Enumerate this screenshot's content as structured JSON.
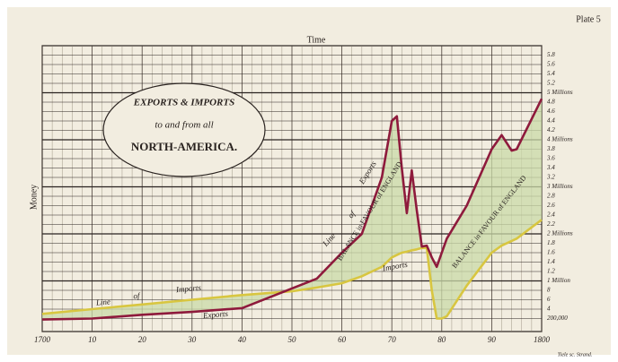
{
  "plate": "Plate 5",
  "credit": "Tiele sc. Strand.",
  "chart_data": {
    "type": "line",
    "title": [
      "EXPORTS & IMPORTS",
      "to and from all",
      "NORTH-AMERICA."
    ],
    "x_label": "Time",
    "y_label": "Money",
    "x": [
      1700,
      1710,
      1720,
      1730,
      1740,
      1750,
      1755,
      1760,
      1764,
      1766,
      1768,
      1770,
      1771,
      1772,
      1773,
      1774,
      1775,
      1776,
      1777,
      1778,
      1779,
      1780,
      1781,
      1785,
      1790,
      1792,
      1794,
      1795,
      1800
    ],
    "series": [
      {
        "name": "Exports",
        "color": "#8e1a3c",
        "values": [
          0.18,
          0.2,
          0.28,
          0.34,
          0.42,
          0.84,
          1.05,
          1.6,
          2.0,
          2.6,
          3.2,
          4.4,
          4.5,
          3.4,
          2.44,
          3.35,
          2.5,
          1.73,
          1.75,
          1.5,
          1.3,
          1.6,
          1.9,
          2.6,
          3.8,
          4.1,
          3.77,
          3.8,
          4.87
        ]
      },
      {
        "name": "Imports",
        "color": "#d8c640",
        "values": [
          0.3,
          0.4,
          0.5,
          0.6,
          0.7,
          0.78,
          0.86,
          0.95,
          1.1,
          1.2,
          1.3,
          1.5,
          1.55,
          1.6,
          1.62,
          1.65,
          1.67,
          1.7,
          1.7,
          0.8,
          0.2,
          0.2,
          0.25,
          0.9,
          1.6,
          1.75,
          1.85,
          1.9,
          2.3
        ]
      }
    ],
    "annotations": [
      "Line",
      "of",
      "Imports",
      "Exports",
      "Line",
      "of",
      "Exports",
      "BALANCE in FAVOUR of ENGLAND",
      "Imports",
      "BALANCE in FAVOUR of ENGLAND"
    ],
    "xlim": [
      1700,
      1800
    ],
    "xticks": [
      {
        "value": 1700,
        "label": "1700"
      },
      {
        "value": 1710,
        "label": "10"
      },
      {
        "value": 1720,
        "label": "20"
      },
      {
        "value": 1730,
        "label": "30"
      },
      {
        "value": 1740,
        "label": "40"
      },
      {
        "value": 1750,
        "label": "50"
      },
      {
        "value": 1760,
        "label": "60"
      },
      {
        "value": 1770,
        "label": "70"
      },
      {
        "value": 1780,
        "label": "80"
      },
      {
        "value": 1790,
        "label": "90"
      },
      {
        "value": 1800,
        "label": "1800"
      }
    ],
    "ylim": [
      0,
      6
    ],
    "yticks": [
      {
        "value": 0.2,
        "label": "200,000"
      },
      {
        "value": 0.4,
        "label": "4"
      },
      {
        "value": 0.6,
        "label": "6"
      },
      {
        "value": 0.8,
        "label": "8"
      },
      {
        "value": 1,
        "label": "1 Million"
      },
      1.2,
      1.4,
      1.6,
      1.8,
      {
        "value": 2,
        "label": "2 Millions"
      },
      2.2,
      2.4,
      2.6,
      2.8,
      {
        "value": 3,
        "label": "3 Millions"
      },
      3.2,
      3.4,
      3.6,
      3.8,
      {
        "value": 4,
        "label": "4 Millions"
      },
      4.2,
      4.4,
      4.6,
      4.8,
      {
        "value": 5,
        "label": "5 Millions"
      },
      5.2,
      5.4,
      5.6,
      5.8
    ],
    "grid": true,
    "area_color": "#c9d9a8"
  }
}
